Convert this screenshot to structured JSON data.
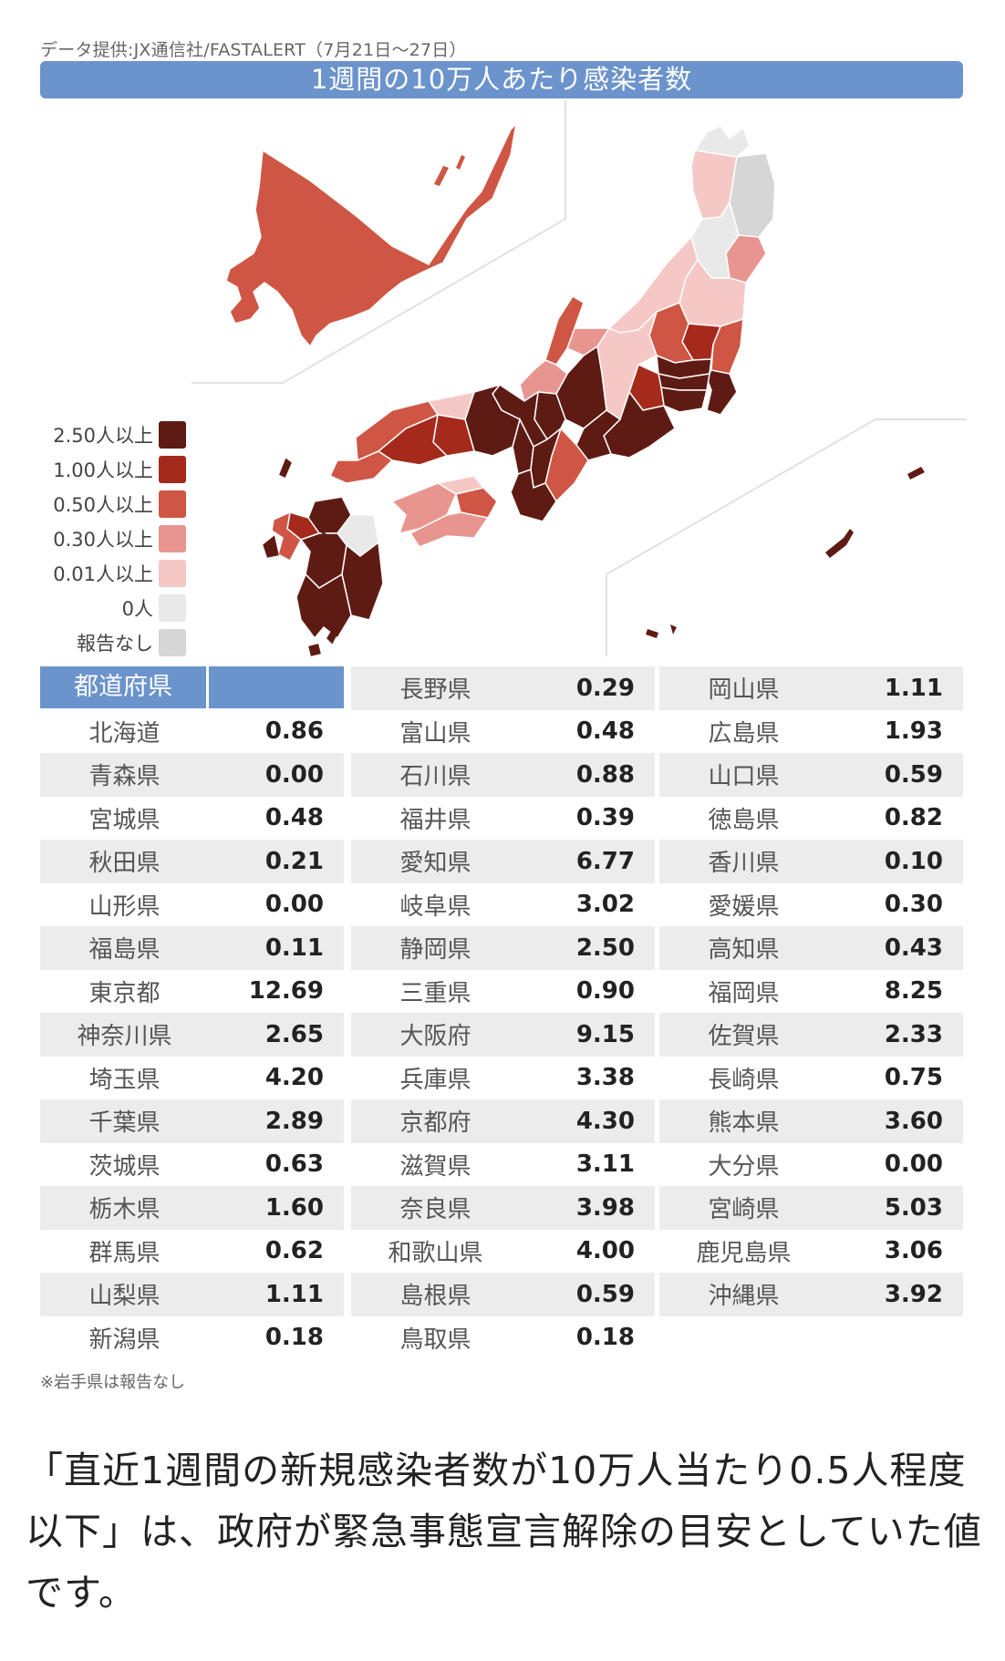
{
  "source": "データ提供:JX通信社/FASTALERT（7月21日～27日）",
  "title": "1週間の10万人あたり感染者数",
  "colors": {
    "level5": "#5e1b14",
    "level4": "#a52a1c",
    "level3": "#cf5644",
    "level2": "#e89590",
    "level1": "#f5c8c6",
    "zero": "#e9e9e9",
    "none": "#d6d6d6",
    "header": "#6b93cc"
  },
  "legend": [
    {
      "label": "2.50人以上",
      "color_key": "level5"
    },
    {
      "label": "1.00人以上",
      "color_key": "level4"
    },
    {
      "label": "0.50人以上",
      "color_key": "level3"
    },
    {
      "label": "0.30人以上",
      "color_key": "level2"
    },
    {
      "label": "0.01人以上",
      "color_key": "level1"
    },
    {
      "label": "0人",
      "color_key": "zero"
    },
    {
      "label": "報告なし",
      "color_key": "none"
    }
  ],
  "table": {
    "header": "都道府県",
    "columns": [
      [
        {
          "name": "北海道",
          "value": "0.86"
        },
        {
          "name": "青森県",
          "value": "0.00"
        },
        {
          "name": "宮城県",
          "value": "0.48"
        },
        {
          "name": "秋田県",
          "value": "0.21"
        },
        {
          "name": "山形県",
          "value": "0.00"
        },
        {
          "name": "福島県",
          "value": "0.11"
        },
        {
          "name": "東京都",
          "value": "12.69"
        },
        {
          "name": "神奈川県",
          "value": "2.65"
        },
        {
          "name": "埼玉県",
          "value": "4.20"
        },
        {
          "name": "千葉県",
          "value": "2.89"
        },
        {
          "name": "茨城県",
          "value": "0.63"
        },
        {
          "name": "栃木県",
          "value": "1.60"
        },
        {
          "name": "群馬県",
          "value": "0.62"
        },
        {
          "name": "山梨県",
          "value": "1.11"
        },
        {
          "name": "新潟県",
          "value": "0.18"
        }
      ],
      [
        {
          "name": "長野県",
          "value": "0.29"
        },
        {
          "name": "富山県",
          "value": "0.48"
        },
        {
          "name": "石川県",
          "value": "0.88"
        },
        {
          "name": "福井県",
          "value": "0.39"
        },
        {
          "name": "愛知県",
          "value": "6.77"
        },
        {
          "name": "岐阜県",
          "value": "3.02"
        },
        {
          "name": "静岡県",
          "value": "2.50"
        },
        {
          "name": "三重県",
          "value": "0.90"
        },
        {
          "name": "大阪府",
          "value": "9.15"
        },
        {
          "name": "兵庫県",
          "value": "3.38"
        },
        {
          "name": "京都府",
          "value": "4.30"
        },
        {
          "name": "滋賀県",
          "value": "3.11"
        },
        {
          "name": "奈良県",
          "value": "3.98"
        },
        {
          "name": "和歌山県",
          "value": "4.00"
        },
        {
          "name": "島根県",
          "value": "0.59"
        },
        {
          "name": "鳥取県",
          "value": "0.18"
        }
      ],
      [
        {
          "name": "岡山県",
          "value": "1.11"
        },
        {
          "name": "広島県",
          "value": "1.93"
        },
        {
          "name": "山口県",
          "value": "0.59"
        },
        {
          "name": "徳島県",
          "value": "0.82"
        },
        {
          "name": "香川県",
          "value": "0.10"
        },
        {
          "name": "愛媛県",
          "value": "0.30"
        },
        {
          "name": "高知県",
          "value": "0.43"
        },
        {
          "name": "福岡県",
          "value": "8.25"
        },
        {
          "name": "佐賀県",
          "value": "2.33"
        },
        {
          "name": "長崎県",
          "value": "0.75"
        },
        {
          "name": "熊本県",
          "value": "3.60"
        },
        {
          "name": "大分県",
          "value": "0.00"
        },
        {
          "name": "宮崎県",
          "value": "5.03"
        },
        {
          "name": "鹿児島県",
          "value": "3.06"
        },
        {
          "name": "沖縄県",
          "value": "3.92"
        }
      ]
    ]
  },
  "footnote": "※岩手県は報告なし",
  "caption": "「直近1週間の新規感染者数が10万人当たり0.5人程度以下」は、政府が緊急事態宣言解除の目安としていた値です。"
}
